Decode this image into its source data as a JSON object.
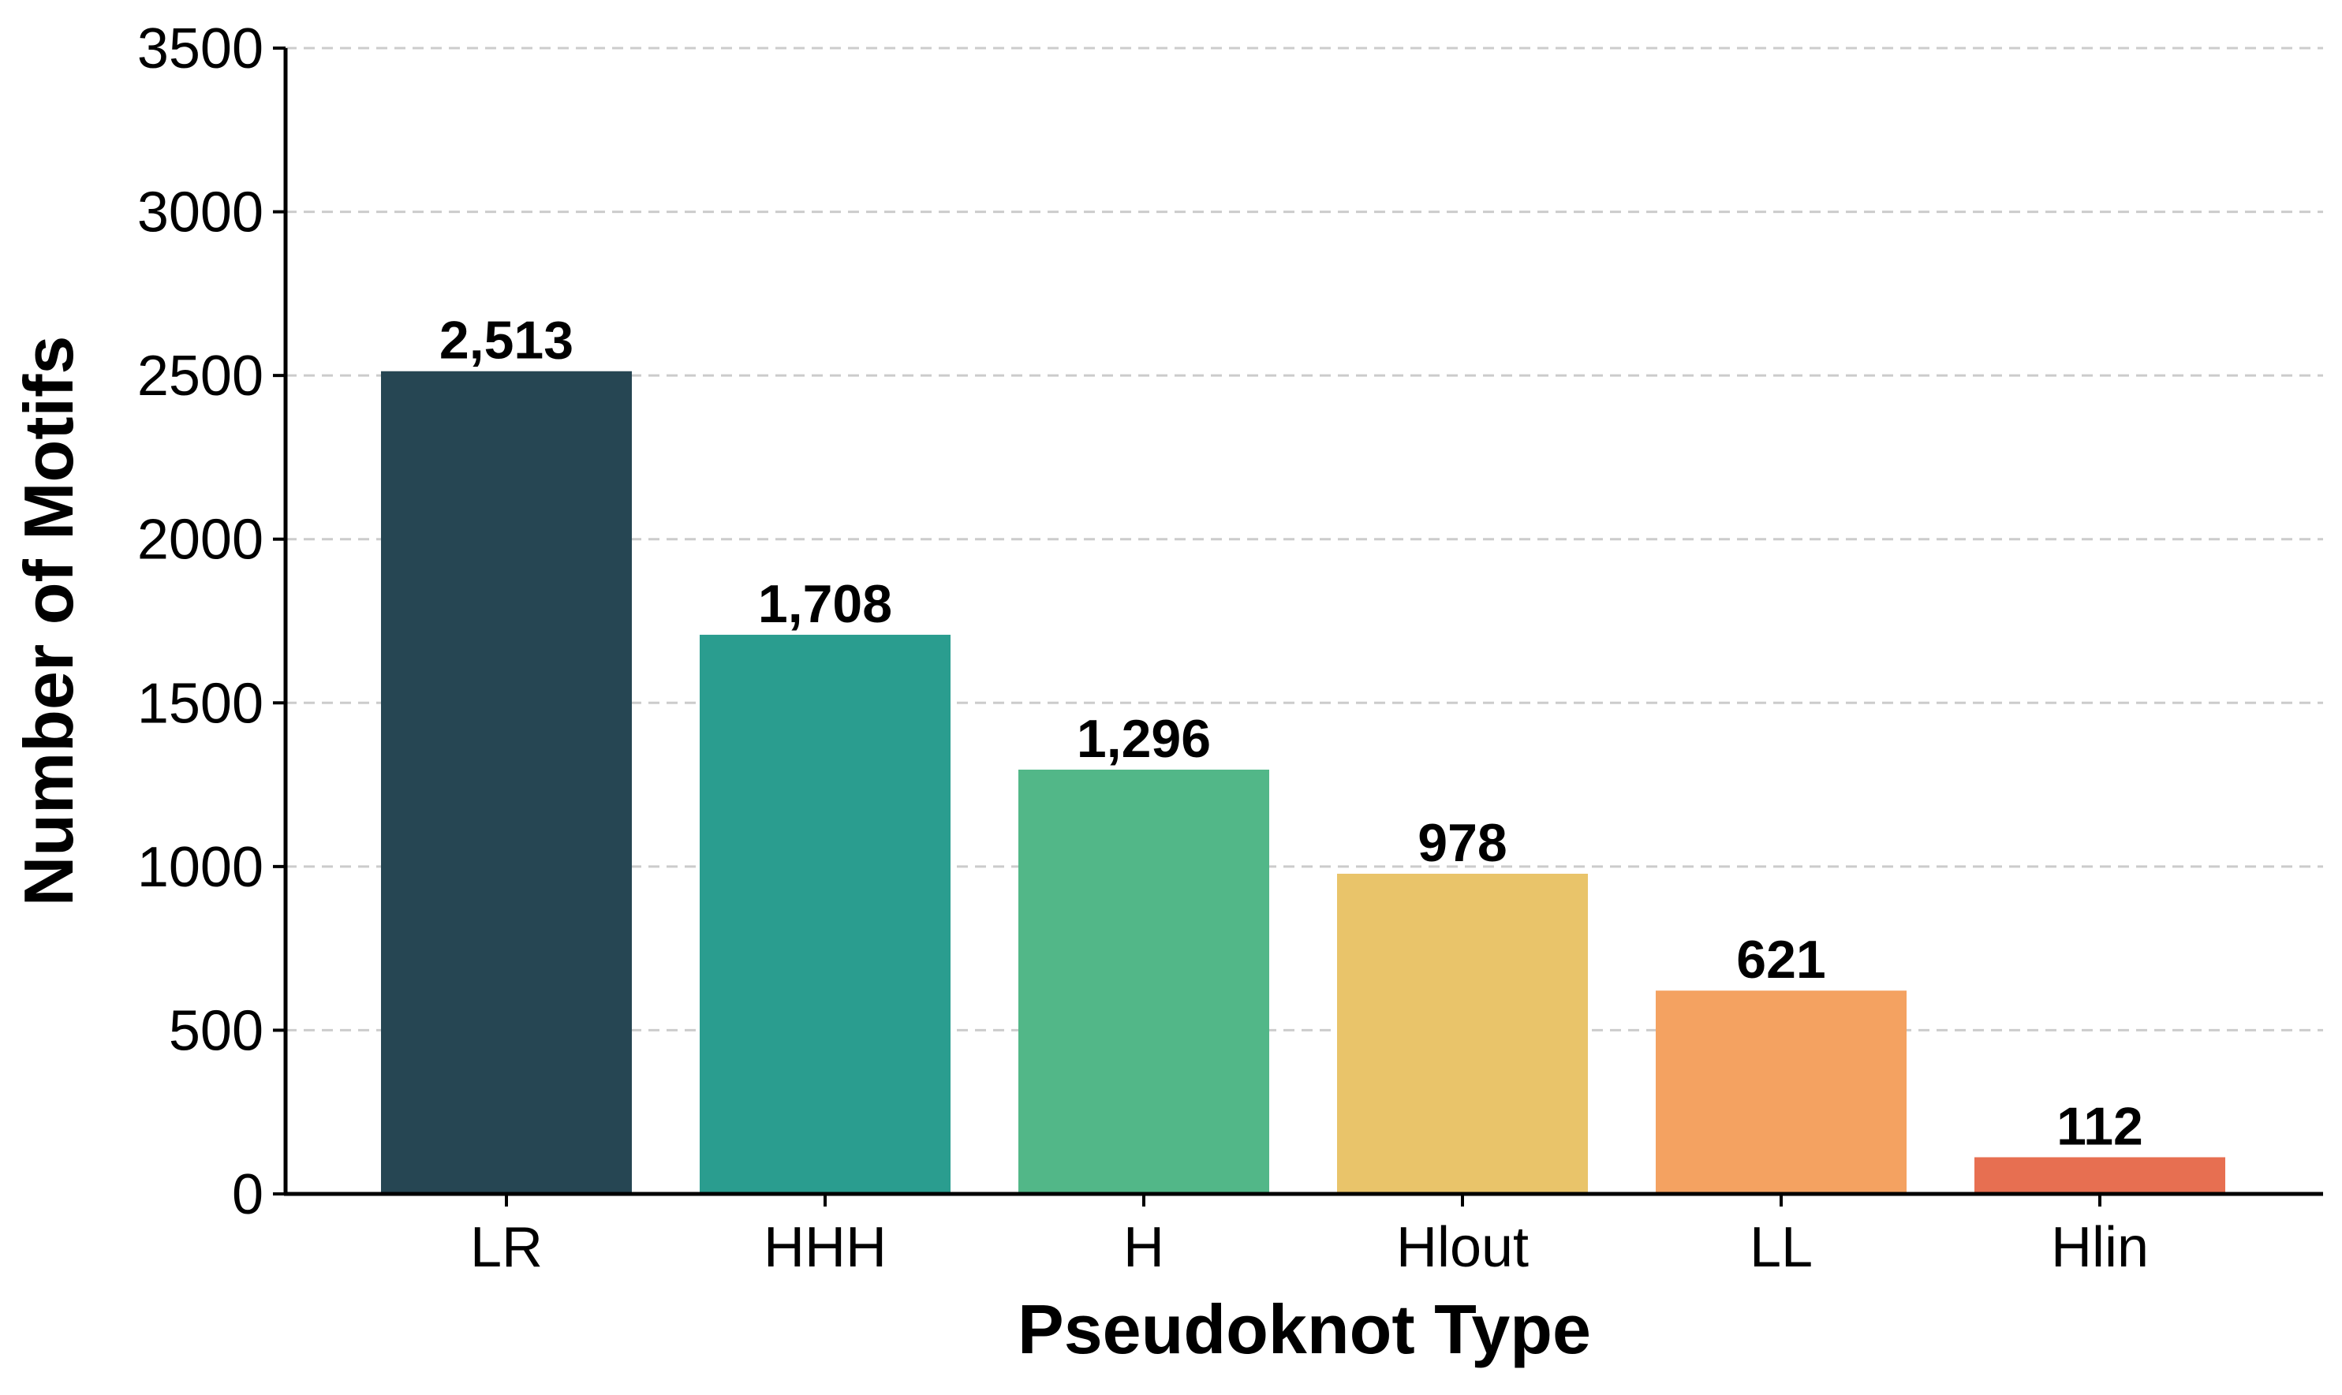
{
  "chart_data": {
    "type": "bar",
    "categories": [
      "LR",
      "HHH",
      "H",
      "Hlout",
      "LL",
      "Hlin"
    ],
    "values": [
      2513,
      1708,
      1296,
      978,
      621,
      112
    ],
    "value_labels": [
      "2,513",
      "1,708",
      "1,296",
      "978",
      "621",
      "112"
    ],
    "colors": [
      "#264653",
      "#2a9d8f",
      "#52b788",
      "#e9c46a",
      "#f4a261",
      "#e76f51"
    ],
    "title": "",
    "xlabel": "Pseudoknot Type",
    "ylabel": "Number of Motifs",
    "ylim": [
      0,
      3500
    ],
    "yticks": [
      0,
      500,
      1000,
      1500,
      2000,
      2500,
      3000,
      3500
    ],
    "grid": "horizontal dashed",
    "legend": "none"
  }
}
